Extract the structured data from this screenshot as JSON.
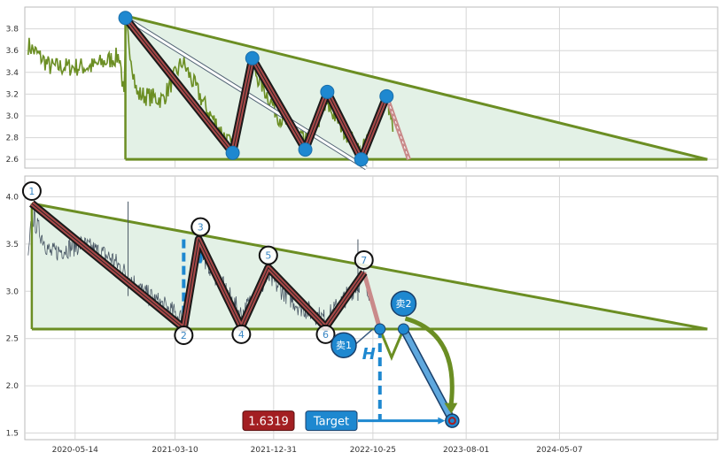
{
  "colors": {
    "triangle_fill": "#e3f1e6",
    "trend_line": "#6b8e23",
    "zigzag_outer": "#1a1a1a",
    "zigzag_inner": "#a84848",
    "projection": "#c98a8a",
    "price_top": "#6b8e23",
    "price_bottom": "#4a5866",
    "node_blue": "#1e88d0",
    "target_red": "#a31f22",
    "target_blue": "#1e88d0"
  },
  "chart_data": [
    {
      "type": "line",
      "panel": "top",
      "y_ticks": [
        "3.8",
        "3.6",
        "3.4",
        "3.2",
        "3.0",
        "2.8",
        "2.6"
      ],
      "ylim": [
        2.52,
        4.0
      ],
      "grid": true,
      "x_range": [
        "2019-12-15",
        "2025-08-25"
      ],
      "triangle": {
        "apex": [
          "2025-07-25",
          2.6
        ],
        "start_top": [
          "2020-10-12",
          3.92
        ],
        "start_bottom": [
          "2020-10-12",
          2.6
        ]
      },
      "zigzag": [
        {
          "x": "2020-10-12",
          "y": 3.9
        },
        {
          "x": "2021-08-30",
          "y": 2.66
        },
        {
          "x": "2021-10-28",
          "y": 3.53
        },
        {
          "x": "2022-04-05",
          "y": 2.69
        },
        {
          "x": "2022-06-10",
          "y": 3.22
        },
        {
          "x": "2022-09-20",
          "y": 2.6
        },
        {
          "x": "2022-12-05",
          "y": 3.18
        }
      ],
      "projection": [
        {
          "x": "2022-12-05",
          "y": 3.18
        },
        {
          "x": "2023-02-10",
          "y": 2.6
        }
      ],
      "diagonal": [
        {
          "x": "2020-10-12",
          "y": 3.9
        },
        {
          "x": "2022-10-05",
          "y": 2.52
        }
      ]
    },
    {
      "type": "line",
      "panel": "bottom",
      "y_ticks": [
        "4.0",
        "3.5",
        "3.0",
        "2.5",
        "2.0",
        "1.5"
      ],
      "ylim": [
        1.43,
        4.22
      ],
      "x_ticks": [
        "2020-05-14",
        "2021-03-10",
        "2021-12-31",
        "2022-10-25",
        "2023-08-01",
        "2024-05-07"
      ],
      "grid": true,
      "x_range": [
        "2019-12-15",
        "2025-08-25"
      ],
      "triangle": {
        "apex": [
          "2025-07-25",
          2.6
        ],
        "start_top": [
          "2020-01-05",
          3.93
        ],
        "start_bottom": [
          "2020-01-05",
          2.6
        ]
      },
      "zigzag_labels": [
        "1",
        "2",
        "3",
        "4",
        "5",
        "6",
        "7"
      ],
      "zigzag": [
        {
          "x": "2020-01-05",
          "y": 3.93
        },
        {
          "x": "2021-04-05",
          "y": 2.61
        },
        {
          "x": "2021-05-20",
          "y": 3.55
        },
        {
          "x": "2021-09-25",
          "y": 2.62
        },
        {
          "x": "2021-12-15",
          "y": 3.25
        },
        {
          "x": "2022-06-05",
          "y": 2.62
        },
        {
          "x": "2022-09-28",
          "y": 3.2
        }
      ],
      "projection_zig": [
        {
          "x": "2022-09-28",
          "y": 3.2
        },
        {
          "x": "2022-11-15",
          "y": 2.6
        },
        {
          "x": "2022-12-20",
          "y": 2.3
        },
        {
          "x": "2023-01-25",
          "y": 2.6
        }
      ],
      "sell_points": [
        {
          "label": "卖1",
          "x": "2022-11-15",
          "y": 2.6
        },
        {
          "label": "卖2",
          "x": "2023-01-25",
          "y": 2.6
        }
      ],
      "target": {
        "value": "1.6319",
        "label": "Target",
        "x": "2023-06-20",
        "y": 1.63
      },
      "pattern_height_label": "H"
    }
  ]
}
